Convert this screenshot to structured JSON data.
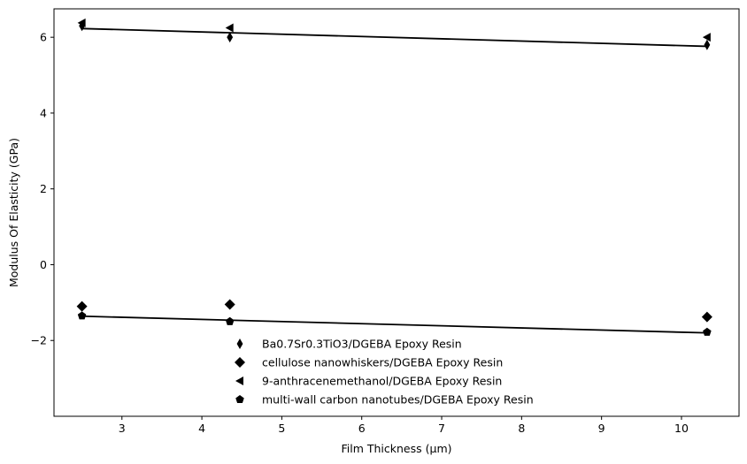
{
  "chart_data": {
    "type": "scatter",
    "title": "",
    "xlabel": "Film Thickness (µm)",
    "ylabel": "Modulus Of Elasticity (GPa)",
    "xlim": [
      2.15,
      10.72
    ],
    "ylim": [
      -4.0,
      6.75
    ],
    "xticks": [
      3,
      4,
      5,
      6,
      7,
      8,
      9,
      10
    ],
    "yticks": [
      -2,
      0,
      2,
      4,
      6
    ],
    "grid": false,
    "legend_position": "bottom-center",
    "series": [
      {
        "name": "Ba0.7Sr0.3TiO3/DGEBA Epoxy Resin",
        "marker": "thin_diamond",
        "color": "#000000",
        "x": [
          2.5,
          4.35,
          10.32
        ],
        "y": [
          6.3,
          6.0,
          5.8
        ]
      },
      {
        "name": "cellulose nanowhiskers/DGEBA Epoxy Resin",
        "marker": "diamond",
        "color": "#000000",
        "x": [
          2.5,
          4.35,
          10.32
        ],
        "y": [
          -1.1,
          -1.05,
          -1.38
        ]
      },
      {
        "name": "9-anthracenemethanol/DGEBA Epoxy Resin",
        "marker": "triangle_left",
        "color": "#000000",
        "x": [
          2.5,
          4.35,
          10.32
        ],
        "y": [
          6.38,
          6.25,
          6.0
        ]
      },
      {
        "name": "multi-wall carbon nanotubes/DGEBA Epoxy Resin",
        "marker": "pentagon",
        "color": "#000000",
        "x": [
          2.5,
          4.35,
          10.32
        ],
        "y": [
          -1.35,
          -1.5,
          -1.78
        ]
      }
    ],
    "fit_lines": [
      {
        "x": [
          2.5,
          10.32
        ],
        "y": [
          6.23,
          5.76
        ],
        "color": "#000000"
      },
      {
        "x": [
          2.5,
          10.32
        ],
        "y": [
          -1.36,
          -1.8
        ],
        "color": "#000000"
      }
    ]
  }
}
